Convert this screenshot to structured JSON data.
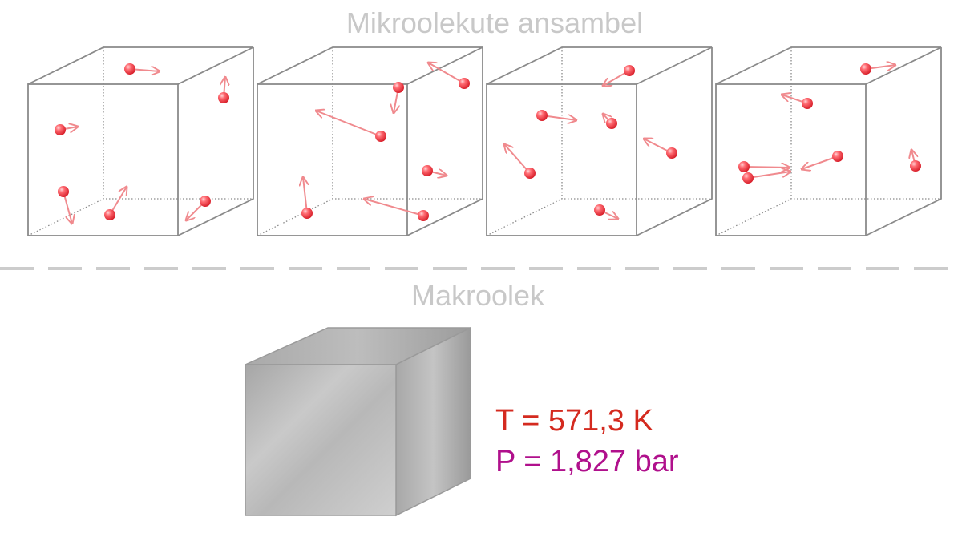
{
  "micro_title": "Mikroolekute ansambel",
  "macro_title": "Makroolek",
  "temperature_label": "T = 571,3 K",
  "pressure_label": "P = 1,827 bar",
  "colors": {
    "title": "#c8c8c8",
    "box_edge": "#8a8a8a",
    "divider": "#cccccc",
    "molecule": "#ff4d55",
    "arrow": "#f08a8e",
    "temperature": "#d42a1f",
    "pressure": "#b0108c"
  },
  "micro_boxes": [
    {
      "name": "micro-box-1"
    },
    {
      "name": "micro-box-2"
    },
    {
      "name": "micro-box-3"
    },
    {
      "name": "micro-box-4"
    }
  ]
}
